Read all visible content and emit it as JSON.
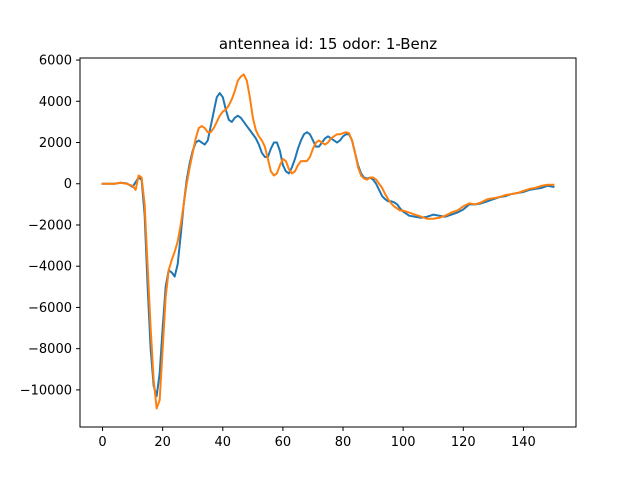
{
  "chart_data": {
    "type": "line",
    "title": "antennea id: 15    odor: 1-Benz",
    "xlabel": "",
    "ylabel": "",
    "xlim": [
      -7.5,
      157.5
    ],
    "ylim": [
      -11800,
      6100
    ],
    "xticks": [
      0,
      20,
      40,
      60,
      80,
      100,
      120,
      140
    ],
    "yticks": [
      -10000,
      -8000,
      -6000,
      -4000,
      -2000,
      0,
      2000,
      4000,
      6000
    ],
    "xtick_labels": [
      "0",
      "20",
      "40",
      "60",
      "80",
      "100",
      "120",
      "140"
    ],
    "ytick_labels": [
      "−10000",
      "−8000",
      "−6000",
      "−4000",
      "−2000",
      "0",
      "2000",
      "4000",
      "6000"
    ],
    "grid": false,
    "legend": false,
    "series": [
      {
        "color": "#1f77b4",
        "points": [
          [
            0,
            0
          ],
          [
            2,
            0
          ],
          [
            4,
            0
          ],
          [
            6,
            50
          ],
          [
            8,
            20
          ],
          [
            10,
            -150
          ],
          [
            12,
            300
          ],
          [
            13,
            200
          ],
          [
            14,
            -1500
          ],
          [
            15,
            -5000
          ],
          [
            16,
            -8000
          ],
          [
            17,
            -9800
          ],
          [
            18,
            -10300
          ],
          [
            19,
            -9200
          ],
          [
            20,
            -7000
          ],
          [
            21,
            -5000
          ],
          [
            22,
            -4200
          ],
          [
            23,
            -4300
          ],
          [
            24,
            -4500
          ],
          [
            25,
            -3900
          ],
          [
            26,
            -2500
          ],
          [
            27,
            -1000
          ],
          [
            28,
            200
          ],
          [
            29,
            1000
          ],
          [
            30,
            1600
          ],
          [
            31,
            2000
          ],
          [
            32,
            2100
          ],
          [
            33,
            2000
          ],
          [
            34,
            1900
          ],
          [
            35,
            2100
          ],
          [
            36,
            2800
          ],
          [
            37,
            3500
          ],
          [
            38,
            4200
          ],
          [
            39,
            4400
          ],
          [
            40,
            4200
          ],
          [
            41,
            3600
          ],
          [
            42,
            3100
          ],
          [
            43,
            3000
          ],
          [
            44,
            3200
          ],
          [
            45,
            3300
          ],
          [
            46,
            3200
          ],
          [
            47,
            3000
          ],
          [
            48,
            2800
          ],
          [
            49,
            2600
          ],
          [
            50,
            2400
          ],
          [
            51,
            2200
          ],
          [
            52,
            1900
          ],
          [
            53,
            1500
          ],
          [
            54,
            1300
          ],
          [
            55,
            1300
          ],
          [
            56,
            1700
          ],
          [
            57,
            2000
          ],
          [
            58,
            2000
          ],
          [
            59,
            1600
          ],
          [
            60,
            900
          ],
          [
            61,
            600
          ],
          [
            62,
            500
          ],
          [
            63,
            800
          ],
          [
            64,
            1200
          ],
          [
            65,
            1700
          ],
          [
            66,
            2100
          ],
          [
            67,
            2400
          ],
          [
            68,
            2500
          ],
          [
            69,
            2400
          ],
          [
            70,
            2100
          ],
          [
            71,
            1800
          ],
          [
            72,
            1800
          ],
          [
            73,
            2000
          ],
          [
            74,
            2200
          ],
          [
            75,
            2300
          ],
          [
            76,
            2200
          ],
          [
            77,
            2100
          ],
          [
            78,
            2000
          ],
          [
            79,
            2100
          ],
          [
            80,
            2300
          ],
          [
            81,
            2400
          ],
          [
            82,
            2400
          ],
          [
            83,
            2100
          ],
          [
            84,
            1500
          ],
          [
            85,
            900
          ],
          [
            86,
            500
          ],
          [
            87,
            300
          ],
          [
            88,
            250
          ],
          [
            89,
            300
          ],
          [
            90,
            200
          ],
          [
            91,
            0
          ],
          [
            92,
            -300
          ],
          [
            93,
            -600
          ],
          [
            94,
            -750
          ],
          [
            95,
            -850
          ],
          [
            96,
            -850
          ],
          [
            97,
            -900
          ],
          [
            98,
            -1000
          ],
          [
            99,
            -1200
          ],
          [
            100,
            -1350
          ],
          [
            102,
            -1550
          ],
          [
            104,
            -1600
          ],
          [
            106,
            -1650
          ],
          [
            108,
            -1600
          ],
          [
            110,
            -1500
          ],
          [
            112,
            -1550
          ],
          [
            114,
            -1600
          ],
          [
            116,
            -1500
          ],
          [
            118,
            -1400
          ],
          [
            120,
            -1250
          ],
          [
            122,
            -1000
          ],
          [
            124,
            -1000
          ],
          [
            126,
            -950
          ],
          [
            128,
            -850
          ],
          [
            130,
            -750
          ],
          [
            132,
            -650
          ],
          [
            134,
            -600
          ],
          [
            136,
            -500
          ],
          [
            138,
            -450
          ],
          [
            140,
            -400
          ],
          [
            142,
            -300
          ],
          [
            144,
            -250
          ],
          [
            146,
            -200
          ],
          [
            148,
            -100
          ],
          [
            150,
            -150
          ]
        ]
      },
      {
        "color": "#ff7f0e",
        "points": [
          [
            0,
            0
          ],
          [
            2,
            0
          ],
          [
            4,
            0
          ],
          [
            6,
            50
          ],
          [
            8,
            0
          ],
          [
            10,
            -100
          ],
          [
            11,
            -300
          ],
          [
            12,
            400
          ],
          [
            13,
            300
          ],
          [
            14,
            -1000
          ],
          [
            15,
            -4000
          ],
          [
            16,
            -7000
          ],
          [
            17,
            -9500
          ],
          [
            18,
            -10900
          ],
          [
            19,
            -10500
          ],
          [
            20,
            -8000
          ],
          [
            21,
            -5500
          ],
          [
            22,
            -4200
          ],
          [
            23,
            -3700
          ],
          [
            24,
            -3300
          ],
          [
            25,
            -2800
          ],
          [
            26,
            -2000
          ],
          [
            27,
            -1000
          ],
          [
            28,
            0
          ],
          [
            29,
            800
          ],
          [
            30,
            1500
          ],
          [
            31,
            2200
          ],
          [
            32,
            2700
          ],
          [
            33,
            2800
          ],
          [
            34,
            2700
          ],
          [
            35,
            2500
          ],
          [
            36,
            2500
          ],
          [
            37,
            2700
          ],
          [
            38,
            3000
          ],
          [
            39,
            3300
          ],
          [
            40,
            3500
          ],
          [
            41,
            3600
          ],
          [
            42,
            3800
          ],
          [
            43,
            4100
          ],
          [
            44,
            4500
          ],
          [
            45,
            5000
          ],
          [
            46,
            5200
          ],
          [
            47,
            5300
          ],
          [
            48,
            5000
          ],
          [
            49,
            4200
          ],
          [
            50,
            3200
          ],
          [
            51,
            2600
          ],
          [
            52,
            2300
          ],
          [
            53,
            2100
          ],
          [
            54,
            1800
          ],
          [
            55,
            1200
          ],
          [
            56,
            600
          ],
          [
            57,
            400
          ],
          [
            58,
            500
          ],
          [
            59,
            900
          ],
          [
            60,
            1200
          ],
          [
            61,
            1100
          ],
          [
            62,
            700
          ],
          [
            63,
            500
          ],
          [
            64,
            600
          ],
          [
            65,
            900
          ],
          [
            66,
            1100
          ],
          [
            67,
            1100
          ],
          [
            68,
            1100
          ],
          [
            69,
            1300
          ],
          [
            70,
            1700
          ],
          [
            71,
            2000
          ],
          [
            72,
            2100
          ],
          [
            73,
            2000
          ],
          [
            74,
            1900
          ],
          [
            75,
            2000
          ],
          [
            76,
            2200
          ],
          [
            77,
            2300
          ],
          [
            78,
            2400
          ],
          [
            79,
            2400
          ],
          [
            80,
            2450
          ],
          [
            81,
            2500
          ],
          [
            82,
            2450
          ],
          [
            83,
            2100
          ],
          [
            84,
            1500
          ],
          [
            85,
            800
          ],
          [
            86,
            400
          ],
          [
            87,
            250
          ],
          [
            88,
            200
          ],
          [
            89,
            300
          ],
          [
            90,
            300
          ],
          [
            91,
            200
          ],
          [
            92,
            0
          ],
          [
            93,
            -200
          ],
          [
            94,
            -500
          ],
          [
            95,
            -750
          ],
          [
            96,
            -950
          ],
          [
            97,
            -1100
          ],
          [
            98,
            -1200
          ],
          [
            99,
            -1300
          ],
          [
            100,
            -1300
          ],
          [
            102,
            -1400
          ],
          [
            104,
            -1500
          ],
          [
            106,
            -1600
          ],
          [
            108,
            -1700
          ],
          [
            110,
            -1700
          ],
          [
            112,
            -1650
          ],
          [
            114,
            -1550
          ],
          [
            116,
            -1400
          ],
          [
            118,
            -1300
          ],
          [
            120,
            -1100
          ],
          [
            122,
            -950
          ],
          [
            124,
            -1000
          ],
          [
            126,
            -900
          ],
          [
            128,
            -750
          ],
          [
            130,
            -700
          ],
          [
            132,
            -650
          ],
          [
            134,
            -550
          ],
          [
            136,
            -500
          ],
          [
            138,
            -450
          ],
          [
            140,
            -350
          ],
          [
            142,
            -250
          ],
          [
            144,
            -200
          ],
          [
            146,
            -100
          ],
          [
            148,
            -50
          ],
          [
            150,
            -50
          ]
        ]
      }
    ]
  }
}
